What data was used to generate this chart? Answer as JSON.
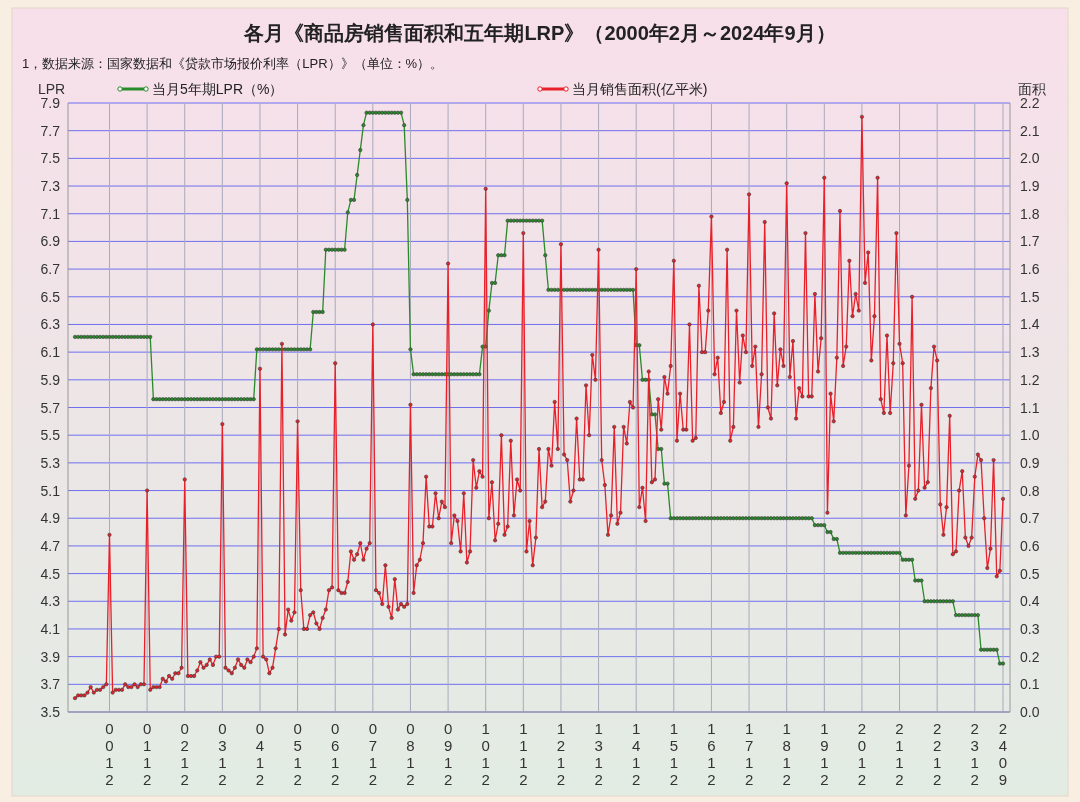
{
  "chart_data": {
    "type": "line",
    "title": "各月《商品房销售面积和五年期LRP》（2000年2月～2024年9月）",
    "annotations": [
      "1，数据来源：国家数据和《贷款市场报价利率（LPR）》（单位：%）。"
    ],
    "ylabel": "LPR",
    "y2label": "面积",
    "categories": [
      null,
      null,
      null,
      null,
      null,
      null,
      null,
      null,
      null,
      null,
      null,
      "0012",
      null,
      null,
      null,
      null,
      null,
      null,
      null,
      null,
      null,
      null,
      null,
      "0112",
      null,
      null,
      null,
      null,
      null,
      null,
      null,
      null,
      null,
      null,
      null,
      "0212",
      null,
      null,
      null,
      null,
      null,
      null,
      null,
      null,
      null,
      null,
      null,
      "0312",
      null,
      null,
      null,
      null,
      null,
      null,
      null,
      null,
      null,
      null,
      null,
      "0412",
      null,
      null,
      null,
      null,
      null,
      null,
      null,
      null,
      null,
      null,
      null,
      "0512",
      null,
      null,
      null,
      null,
      null,
      null,
      null,
      null,
      null,
      null,
      null,
      "0612",
      null,
      null,
      null,
      null,
      null,
      null,
      null,
      null,
      null,
      null,
      null,
      "0712",
      null,
      null,
      null,
      null,
      null,
      null,
      null,
      null,
      null,
      null,
      null,
      "0812",
      null,
      null,
      null,
      null,
      null,
      null,
      null,
      null,
      null,
      null,
      null,
      "0912",
      null,
      null,
      null,
      null,
      null,
      null,
      null,
      null,
      null,
      null,
      null,
      "1012",
      null,
      null,
      null,
      null,
      null,
      null,
      null,
      null,
      null,
      null,
      null,
      "1112",
      null,
      null,
      null,
      null,
      null,
      null,
      null,
      null,
      null,
      null,
      null,
      "1212",
      null,
      null,
      null,
      null,
      null,
      null,
      null,
      null,
      null,
      null,
      null,
      "1312",
      null,
      null,
      null,
      null,
      null,
      null,
      null,
      null,
      null,
      null,
      null,
      "1412",
      null,
      null,
      null,
      null,
      null,
      null,
      null,
      null,
      null,
      null,
      null,
      "1512",
      null,
      null,
      null,
      null,
      null,
      null,
      null,
      null,
      null,
      null,
      null,
      "1612",
      null,
      null,
      null,
      null,
      null,
      null,
      null,
      null,
      null,
      null,
      null,
      "1712",
      null,
      null,
      null,
      null,
      null,
      null,
      null,
      null,
      null,
      null,
      null,
      "1812",
      null,
      null,
      null,
      null,
      null,
      null,
      null,
      null,
      null,
      null,
      null,
      "1912",
      null,
      null,
      null,
      null,
      null,
      null,
      null,
      null,
      null,
      null,
      null,
      "2012",
      null,
      null,
      null,
      null,
      null,
      null,
      null,
      null,
      null,
      null,
      null,
      "2112",
      null,
      null,
      null,
      null,
      null,
      null,
      null,
      null,
      null,
      null,
      null,
      "2212",
      null,
      null,
      null,
      null,
      null,
      null,
      null,
      null,
      null,
      null,
      null,
      "2312",
      null,
      null,
      null,
      null,
      null,
      null,
      null,
      null,
      "2409"
    ],
    "series": [
      {
        "name": "当月5年期LPR（%）",
        "color": "#2a8a2a",
        "values": [
          6.21,
          6.21,
          6.21,
          6.21,
          6.21,
          6.21,
          6.21,
          6.21,
          6.21,
          6.21,
          6.21,
          6.21,
          6.21,
          6.21,
          6.21,
          6.21,
          6.21,
          6.21,
          6.21,
          6.21,
          6.21,
          6.21,
          6.21,
          6.21,
          6.21,
          5.76,
          5.76,
          5.76,
          5.76,
          5.76,
          5.76,
          5.76,
          5.76,
          5.76,
          5.76,
          5.76,
          5.76,
          5.76,
          5.76,
          5.76,
          5.76,
          5.76,
          5.76,
          5.76,
          5.76,
          5.76,
          5.76,
          5.76,
          5.76,
          5.76,
          5.76,
          5.76,
          5.76,
          5.76,
          5.76,
          5.76,
          5.76,
          5.76,
          6.12,
          6.12,
          6.12,
          6.12,
          6.12,
          6.12,
          6.12,
          6.12,
          6.12,
          6.12,
          6.12,
          6.12,
          6.12,
          6.12,
          6.12,
          6.12,
          6.12,
          6.12,
          6.39,
          6.39,
          6.39,
          6.39,
          6.84,
          6.84,
          6.84,
          6.84,
          6.84,
          6.84,
          6.84,
          7.11,
          7.2,
          7.2,
          7.38,
          7.56,
          7.74,
          7.83,
          7.83,
          7.83,
          7.83,
          7.83,
          7.83,
          7.83,
          7.83,
          7.83,
          7.83,
          7.83,
          7.83,
          7.74,
          7.2,
          6.12,
          5.94,
          5.94,
          5.94,
          5.94,
          5.94,
          5.94,
          5.94,
          5.94,
          5.94,
          5.94,
          5.94,
          5.94,
          5.94,
          5.94,
          5.94,
          5.94,
          5.94,
          5.94,
          5.94,
          5.94,
          5.94,
          5.94,
          6.14,
          6.14,
          6.4,
          6.6,
          6.6,
          6.8,
          6.8,
          6.8,
          7.05,
          7.05,
          7.05,
          7.05,
          7.05,
          7.05,
          7.05,
          7.05,
          7.05,
          7.05,
          7.05,
          7.05,
          6.8,
          6.55,
          6.55,
          6.55,
          6.55,
          6.55,
          6.55,
          6.55,
          6.55,
          6.55,
          6.55,
          6.55,
          6.55,
          6.55,
          6.55,
          6.55,
          6.55,
          6.55,
          6.55,
          6.55,
          6.55,
          6.55,
          6.55,
          6.55,
          6.55,
          6.55,
          6.55,
          6.55,
          6.55,
          6.15,
          6.15,
          5.9,
          5.9,
          5.9,
          5.65,
          5.65,
          5.4,
          5.4,
          5.15,
          5.15,
          4.9,
          4.9,
          4.9,
          4.9,
          4.9,
          4.9,
          4.9,
          4.9,
          4.9,
          4.9,
          4.9,
          4.9,
          4.9,
          4.9,
          4.9,
          4.9,
          4.9,
          4.9,
          4.9,
          4.9,
          4.9,
          4.9,
          4.9,
          4.9,
          4.9,
          4.9,
          4.9,
          4.9,
          4.9,
          4.9,
          4.9,
          4.9,
          4.9,
          4.9,
          4.9,
          4.9,
          4.9,
          4.9,
          4.9,
          4.9,
          4.9,
          4.9,
          4.9,
          4.9,
          4.9,
          4.9,
          4.85,
          4.85,
          4.85,
          4.85,
          4.8,
          4.8,
          4.75,
          4.75,
          4.65,
          4.65,
          4.65,
          4.65,
          4.65,
          4.65,
          4.65,
          4.65,
          4.65,
          4.65,
          4.65,
          4.65,
          4.65,
          4.65,
          4.65,
          4.65,
          4.65,
          4.65,
          4.65,
          4.65,
          4.6,
          4.6,
          4.6,
          4.6,
          4.45,
          4.45,
          4.45,
          4.3,
          4.3,
          4.3,
          4.3,
          4.3,
          4.3,
          4.3,
          4.3,
          4.3,
          4.3,
          4.2,
          4.2,
          4.2,
          4.2,
          4.2,
          4.2,
          4.2,
          4.2,
          3.95,
          3.95,
          3.95,
          3.95,
          3.95,
          3.95,
          3.85,
          3.85
        ]
      },
      {
        "name": "当月销售面积(亿平米)",
        "color": "#e8202a",
        "axis": "y2",
        "values": [
          0.05,
          0.06,
          0.06,
          0.06,
          0.07,
          0.09,
          0.07,
          0.08,
          0.08,
          0.09,
          0.1,
          0.64,
          0.07,
          0.08,
          0.08,
          0.08,
          0.1,
          0.09,
          0.09,
          0.1,
          0.09,
          0.1,
          0.1,
          0.8,
          0.08,
          0.09,
          0.09,
          0.09,
          0.12,
          0.11,
          0.13,
          0.12,
          0.14,
          0.14,
          0.16,
          0.84,
          0.13,
          0.13,
          0.13,
          0.15,
          0.18,
          0.16,
          0.17,
          0.19,
          0.17,
          0.2,
          0.2,
          1.04,
          0.16,
          0.15,
          0.14,
          0.16,
          0.19,
          0.17,
          0.16,
          0.19,
          0.18,
          0.2,
          0.23,
          1.24,
          0.2,
          0.19,
          0.14,
          0.16,
          0.23,
          0.3,
          1.33,
          0.28,
          0.37,
          0.33,
          0.36,
          1.05,
          0.44,
          0.3,
          0.3,
          0.35,
          0.36,
          0.32,
          0.3,
          0.34,
          0.37,
          0.44,
          0.45,
          1.26,
          0.44,
          0.43,
          0.43,
          0.47,
          0.58,
          0.55,
          0.57,
          0.61,
          0.55,
          0.59,
          0.61,
          1.4,
          0.44,
          0.43,
          0.39,
          0.53,
          0.38,
          0.34,
          0.48,
          0.37,
          0.39,
          0.38,
          0.39,
          1.11,
          0.43,
          0.53,
          0.55,
          0.61,
          0.85,
          0.67,
          0.67,
          0.79,
          0.7,
          0.76,
          0.74,
          1.62,
          0.61,
          0.71,
          0.69,
          0.58,
          0.79,
          0.54,
          0.58,
          0.91,
          0.81,
          0.87,
          0.85,
          1.89,
          0.7,
          0.83,
          0.62,
          0.68,
          1.0,
          0.64,
          0.67,
          0.98,
          0.71,
          0.84,
          0.8,
          1.73,
          0.58,
          0.69,
          0.53,
          0.63,
          0.95,
          0.74,
          0.76,
          0.95,
          0.89,
          1.12,
          0.95,
          1.69,
          0.93,
          0.91,
          0.76,
          0.8,
          1.06,
          0.84,
          0.84,
          1.18,
          1.0,
          1.29,
          1.2,
          1.67,
          0.91,
          0.82,
          0.64,
          0.71,
          1.03,
          0.68,
          0.72,
          1.03,
          0.97,
          1.12,
          1.1,
          1.6,
          0.74,
          0.81,
          0.69,
          1.23,
          0.83,
          0.84,
          1.13,
          1.02,
          1.21,
          1.15,
          1.25,
          1.63,
          0.98,
          1.15,
          1.02,
          1.02,
          1.4,
          0.98,
          0.99,
          1.54,
          1.3,
          1.3,
          1.45,
          1.79,
          1.22,
          1.28,
          1.08,
          1.12,
          1.67,
          0.98,
          1.03,
          1.45,
          1.19,
          1.36,
          1.3,
          1.87,
          1.25,
          1.32,
          1.03,
          1.22,
          1.77,
          1.1,
          1.06,
          1.44,
          1.18,
          1.31,
          1.25,
          1.91,
          1.21,
          1.34,
          1.06,
          1.17,
          1.14,
          1.73,
          1.14,
          1.14,
          1.51,
          1.23,
          1.35,
          1.93,
          0.72,
          1.15,
          1.05,
          1.28,
          1.81,
          1.25,
          1.32,
          1.63,
          1.43,
          1.51,
          1.45,
          2.15,
          1.55,
          1.66,
          1.27,
          1.43,
          1.93,
          1.13,
          1.08,
          1.36,
          1.08,
          1.26,
          1.73,
          1.33,
          1.26,
          0.71,
          0.89,
          1.5,
          0.77,
          0.8,
          1.11,
          0.81,
          0.83,
          1.17,
          1.32,
          1.27,
          0.75,
          0.64,
          0.74,
          1.07,
          0.57,
          0.58,
          0.8,
          0.87,
          0.63,
          0.6,
          0.63,
          0.85,
          0.93,
          0.91,
          0.7,
          0.52,
          0.59,
          0.91,
          0.49,
          0.51,
          0.77
        ]
      }
    ],
    "ylim": [
      3.5,
      7.9
    ],
    "yticks": [
      3.5,
      3.7,
      3.9,
      4.1,
      4.3,
      4.5,
      4.7,
      4.9,
      5.1,
      5.3,
      5.5,
      5.7,
      5.9,
      6.1,
      6.3,
      6.5,
      6.7,
      6.9,
      7.1,
      7.3,
      7.5,
      7.7,
      7.9
    ],
    "y2lim": [
      0,
      2.2
    ],
    "y2ticks": [
      {
        "value": 0,
        "label": "0.0"
      },
      0.1,
      0.2,
      0.3,
      0.4,
      0.5,
      0.6,
      0.7,
      0.8,
      0.9,
      {
        "value": 1,
        "label": "1.0"
      },
      1.1,
      1.2,
      1.3,
      1.4,
      1.5,
      1.6,
      1.7,
      1.8,
      1.9,
      {
        "value": 2,
        "label": "2.0"
      },
      2.1,
      2.2
    ],
    "grid": true,
    "legend": "top",
    "marker": "circle",
    "line_style": "solid"
  }
}
